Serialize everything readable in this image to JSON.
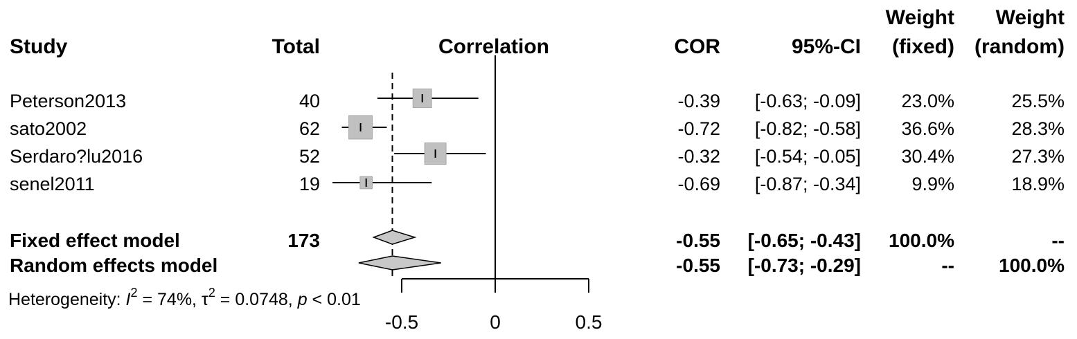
{
  "headers": {
    "study": "Study",
    "total": "Total",
    "correlation": "Correlation",
    "cor": "COR",
    "ci": "95%-CI",
    "weight_fixed_line1": "Weight",
    "weight_fixed_line2": "(fixed)",
    "weight_random_line1": "Weight",
    "weight_random_line2": "(random)"
  },
  "studies": [
    {
      "name": "Peterson2013",
      "total": "40",
      "cor": "-0.39",
      "ci": "[-0.63; -0.09]",
      "w_fixed": "23.0%",
      "w_random": "25.5%"
    },
    {
      "name": "sato2002",
      "total": "62",
      "cor": "-0.72",
      "ci": "[-0.82; -0.58]",
      "w_fixed": "36.6%",
      "w_random": "28.3%"
    },
    {
      "name": "Serdaro?lu2016",
      "total": "52",
      "cor": "-0.32",
      "ci": "[-0.54; -0.05]",
      "w_fixed": "30.4%",
      "w_random": "27.3%"
    },
    {
      "name": "senel2011",
      "total": "19",
      "cor": "-0.69",
      "ci": "[-0.87; -0.34]",
      "w_fixed": "9.9%",
      "w_random": "18.9%"
    }
  ],
  "summary": [
    {
      "name": "Fixed effect model",
      "total": "173",
      "cor": "-0.55",
      "ci": "[-0.65; -0.43]",
      "w_fixed": "100.0%",
      "w_random": "--"
    },
    {
      "name": "Random effects model",
      "total": "",
      "cor": "-0.55",
      "ci": "[-0.73; -0.29]",
      "w_fixed": "--",
      "w_random": "100.0%"
    }
  ],
  "heterogeneity": {
    "prefix": "Heterogeneity: ",
    "i_symbol": "I",
    "i_sup": "2",
    "i_value": " = 74%, ",
    "tau_symbol": "τ",
    "tau_sup": "2",
    "tau_value": " = 0.0748, ",
    "p_symbol": "p",
    "p_value": " < 0.01"
  },
  "chart_data": {
    "type": "forest",
    "title": "Correlation",
    "xlim": [
      -0.9,
      0.5
    ],
    "x_ticks": [
      -0.5,
      0,
      0.5
    ],
    "x_tick_labels": [
      "-0.5",
      "0",
      "0.5"
    ],
    "reference_line": 0,
    "fixed_effect_line": -0.55,
    "studies": [
      {
        "name": "Peterson2013",
        "estimate": -0.39,
        "lower": -0.63,
        "upper": -0.09,
        "weight_fixed": 23.0
      },
      {
        "name": "sato2002",
        "estimate": -0.72,
        "lower": -0.82,
        "upper": -0.58,
        "weight_fixed": 36.6
      },
      {
        "name": "Serdaro?lu2016",
        "estimate": -0.32,
        "lower": -0.54,
        "upper": -0.05,
        "weight_fixed": 30.4
      },
      {
        "name": "senel2011",
        "estimate": -0.69,
        "lower": -0.87,
        "upper": -0.34,
        "weight_fixed": 9.9
      }
    ],
    "pooled": [
      {
        "name": "Fixed effect model",
        "estimate": -0.55,
        "lower": -0.65,
        "upper": -0.43
      },
      {
        "name": "Random effects model",
        "estimate": -0.55,
        "lower": -0.73,
        "upper": -0.29
      }
    ],
    "colors": {
      "box": "#c0c0c0",
      "box_stroke": "#a8a8a8",
      "diamond": "#c8c8c8",
      "line": "#000000"
    }
  }
}
